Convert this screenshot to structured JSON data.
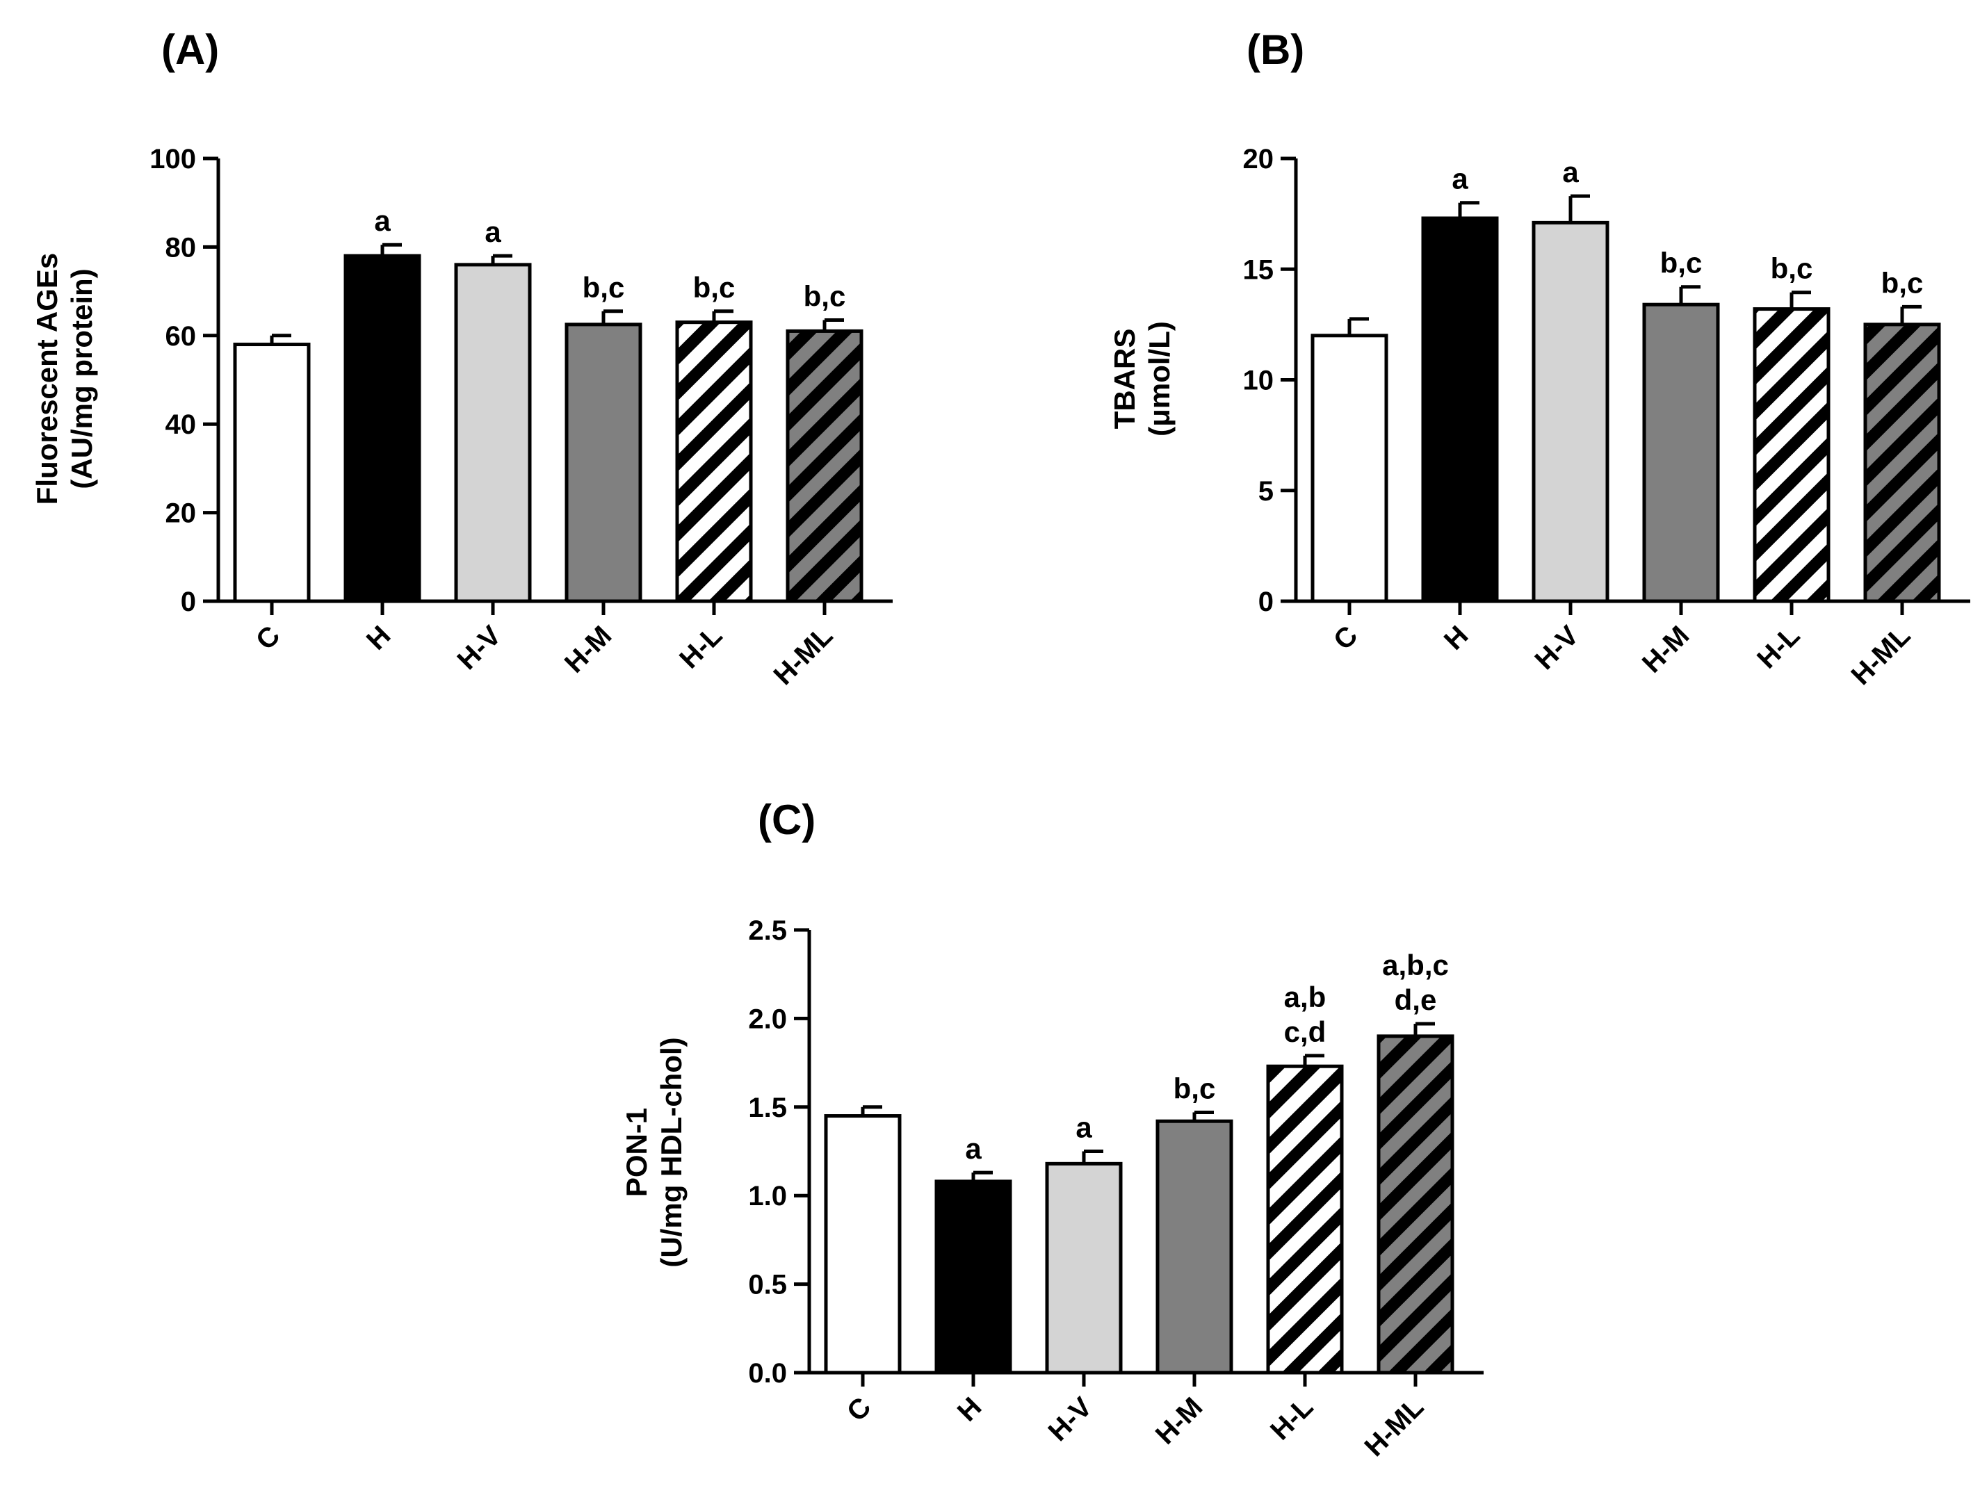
{
  "colors": {
    "white": "#ffffff",
    "black": "#000000",
    "light_gray": "#d4d4d4",
    "dark_gray": "#808080",
    "hatch_bg_white": "#ffffff",
    "hatch_bg_gray": "#808080"
  },
  "chart_data": [
    {
      "type": "bar",
      "panel_label": "(A)",
      "title": "",
      "ylabel_lines": [
        "Fluorescent AGEs",
        "(AU/mg protein)"
      ],
      "xlabel": "",
      "categories": [
        "C",
        "H",
        "H-V",
        "H-M",
        "H-L",
        "H-ML"
      ],
      "values": [
        58,
        78,
        76,
        62.5,
        63,
        61
      ],
      "errors": [
        2,
        2.5,
        2,
        3,
        2.5,
        2.5
      ],
      "significance": [
        [],
        [
          "a"
        ],
        [
          "a"
        ],
        [
          "b,c"
        ],
        [
          "b,c"
        ],
        [
          "b,c"
        ]
      ],
      "fills": [
        "white",
        "black",
        "light_gray",
        "dark_gray",
        "hatch_white",
        "hatch_gray"
      ],
      "ylim": [
        0,
        100
      ],
      "yticks": [
        0,
        20,
        40,
        60,
        80,
        100
      ],
      "ytick_labels": [
        "0",
        "20",
        "40",
        "60",
        "80",
        "100"
      ],
      "grid": false
    },
    {
      "type": "bar",
      "panel_label": "(B)",
      "title": "",
      "ylabel_lines": [
        "TBARS",
        "(μmol/L)"
      ],
      "xlabel": "",
      "categories": [
        "C",
        "H",
        "H-V",
        "H-M",
        "H-L",
        "H-ML"
      ],
      "values": [
        12,
        17.3,
        17.1,
        13.4,
        13.2,
        12.5
      ],
      "errors": [
        0.75,
        0.7,
        1.2,
        0.8,
        0.75,
        0.8
      ],
      "significance": [
        [],
        [
          "a"
        ],
        [
          "a"
        ],
        [
          "b,c"
        ],
        [
          "b,c"
        ],
        [
          "b,c"
        ]
      ],
      "fills": [
        "white",
        "black",
        "light_gray",
        "dark_gray",
        "hatch_white",
        "hatch_gray"
      ],
      "ylim": [
        0,
        20
      ],
      "yticks": [
        0,
        5,
        10,
        15,
        20
      ],
      "ytick_labels": [
        "0",
        "5",
        "10",
        "15",
        "20"
      ],
      "grid": false
    },
    {
      "type": "bar",
      "panel_label": "(C)",
      "title": "",
      "ylabel_lines": [
        "PON-1",
        "(U/mg HDL-chol)"
      ],
      "xlabel": "",
      "categories": [
        "C",
        "H",
        "H-V",
        "H-M",
        "H-L",
        "H-ML"
      ],
      "values": [
        1.45,
        1.08,
        1.18,
        1.42,
        1.73,
        1.9
      ],
      "errors": [
        0.05,
        0.05,
        0.07,
        0.05,
        0.06,
        0.07
      ],
      "significance": [
        [],
        [
          "a"
        ],
        [
          "a"
        ],
        [
          "b,c"
        ],
        [
          "a,b",
          "c,d"
        ],
        [
          "a,b,c",
          "d,e"
        ]
      ],
      "fills": [
        "white",
        "black",
        "light_gray",
        "dark_gray",
        "hatch_white",
        "hatch_gray"
      ],
      "ylim": [
        0,
        2.5
      ],
      "yticks": [
        0,
        0.5,
        1.0,
        1.5,
        2.0,
        2.5
      ],
      "ytick_labels": [
        "0.0",
        "0.5",
        "1.0",
        "1.5",
        "2.0",
        "2.5"
      ],
      "grid": false
    }
  ]
}
